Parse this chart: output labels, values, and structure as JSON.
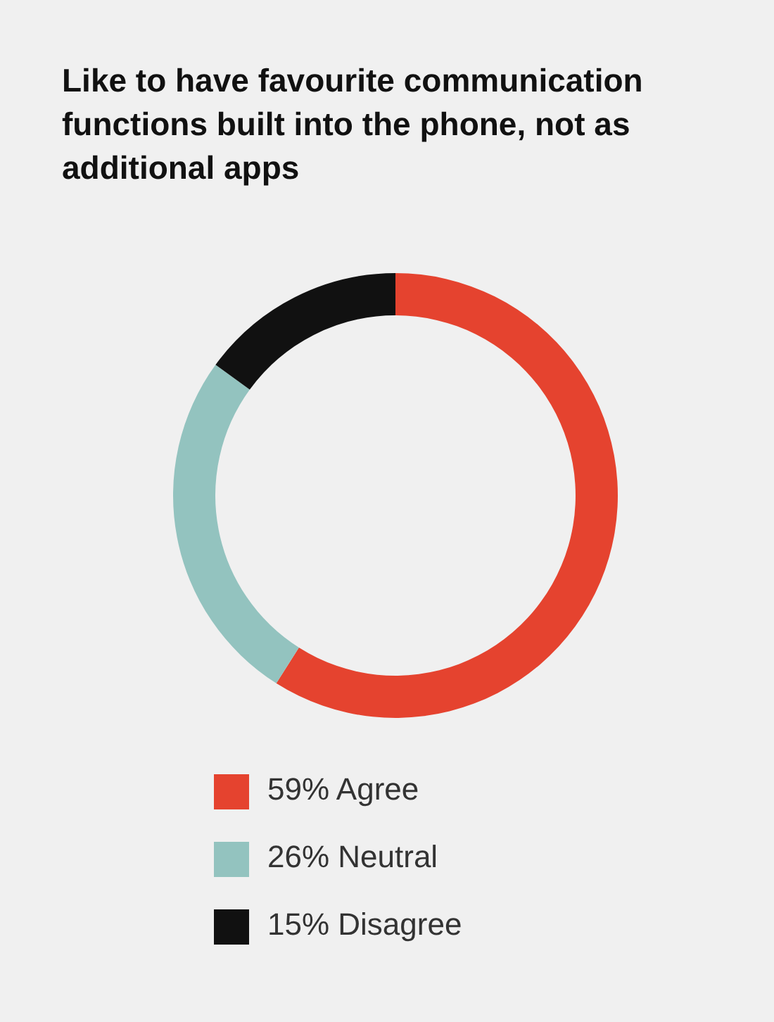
{
  "chart_data": {
    "type": "donut",
    "title": "Like to have favourite communication functions built into the phone, not as additional apps",
    "categories": [
      "59% Agree",
      "26% Neutral",
      "15% Disagree"
    ],
    "values": [
      59,
      26,
      15
    ],
    "colors": [
      "#e5432f",
      "#93c3bf",
      "#111111"
    ],
    "legend": "bottom left"
  }
}
